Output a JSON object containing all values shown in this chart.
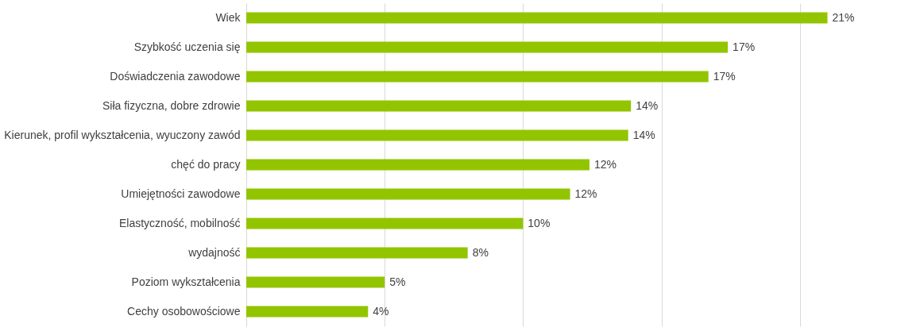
{
  "chart_data": {
    "type": "bar",
    "orientation": "horizontal",
    "categories": [
      "Wiek",
      "Szybkość uczenia się",
      "Doświadczenia zawodowe",
      "Siła fizyczna, dobre zdrowie",
      "Kierunek, profil wykształcenia, wyuczony zawód",
      "chęć do pracy",
      "Umiejętności zawodowe",
      "Elastyczność, mobilność",
      "wydajność",
      "Poziom wykształcenia",
      "Cechy osobowościowe"
    ],
    "values": [
      21,
      17.4,
      16.7,
      13.9,
      13.8,
      12.4,
      11.7,
      10,
      8,
      5,
      4.4
    ],
    "value_labels": [
      "21%",
      "17%",
      "17%",
      "14%",
      "14%",
      "12%",
      "12%",
      "10%",
      "8%",
      "5%",
      "4%"
    ],
    "color": "#92c500",
    "xlim": [
      0,
      24
    ],
    "xticks": [
      {
        "value": 0,
        "label": null
      },
      {
        "value": 5,
        "label": null
      },
      {
        "value": 10,
        "label": null
      },
      {
        "value": 15,
        "label": null
      },
      {
        "value": 20,
        "label": null
      }
    ],
    "tick_labels": "y",
    "grid": "x"
  }
}
